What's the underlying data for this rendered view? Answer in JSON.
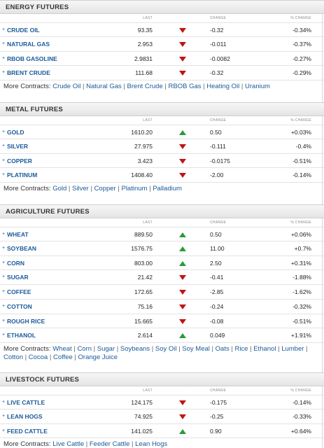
{
  "columns": {
    "last": "LAST",
    "change": "CHANGE",
    "pct": "% CHANGE"
  },
  "more_label": "More Contracts:",
  "sections": [
    {
      "title": "ENERGY FUTURES",
      "rows": [
        {
          "name": "CRUDE OIL",
          "last": "93.35",
          "dir": "down",
          "change": "-0.32",
          "pct": "-0.34%"
        },
        {
          "name": "NATURAL GAS",
          "last": "2.953",
          "dir": "down",
          "change": "-0.011",
          "pct": "-0.37%"
        },
        {
          "name": "RBOB GASOLINE",
          "last": "2.9831",
          "dir": "down",
          "change": "-0.0082",
          "pct": "-0.27%"
        },
        {
          "name": "BRENT CRUDE",
          "last": "111.68",
          "dir": "down",
          "change": "-0.32",
          "pct": "-0.29%"
        }
      ],
      "more": [
        "Crude Oil",
        "Natural Gas",
        "Brent Crude",
        "RBOB Gas",
        "Heating Oil",
        "Uranium"
      ]
    },
    {
      "title": "METAL FUTURES",
      "rows": [
        {
          "name": "GOLD",
          "last": "1610.20",
          "dir": "up",
          "change": "0.50",
          "pct": "+0.03%"
        },
        {
          "name": "SILVER",
          "last": "27.975",
          "dir": "down",
          "change": "-0.111",
          "pct": "-0.4%"
        },
        {
          "name": "COPPER",
          "last": "3.423",
          "dir": "down",
          "change": "-0.0175",
          "pct": "-0.51%"
        },
        {
          "name": "PLATINUM",
          "last": "1408.40",
          "dir": "down",
          "change": "-2.00",
          "pct": "-0.14%"
        }
      ],
      "more": [
        "Gold",
        "Silver",
        "Copper",
        "Platinum",
        "Palladium"
      ]
    },
    {
      "title": "AGRICULTURE FUTURES",
      "rows": [
        {
          "name": "WHEAT",
          "last": "889.50",
          "dir": "up",
          "change": "0.50",
          "pct": "+0.06%"
        },
        {
          "name": "SOYBEAN",
          "last": "1576.75",
          "dir": "up",
          "change": "11.00",
          "pct": "+0.7%"
        },
        {
          "name": "CORN",
          "last": "803.00",
          "dir": "up",
          "change": "2.50",
          "pct": "+0.31%"
        },
        {
          "name": "SUGAR",
          "last": "21.42",
          "dir": "down",
          "change": "-0.41",
          "pct": "-1.88%"
        },
        {
          "name": "COFFEE",
          "last": "172.65",
          "dir": "down",
          "change": "-2.85",
          "pct": "-1.62%"
        },
        {
          "name": "COTTON",
          "last": "75.16",
          "dir": "down",
          "change": "-0.24",
          "pct": "-0.32%"
        },
        {
          "name": "ROUGH RICE",
          "last": "15.665",
          "dir": "down",
          "change": "-0.08",
          "pct": "-0.51%"
        },
        {
          "name": "ETHANOL",
          "last": "2.614",
          "dir": "up",
          "change": "0.049",
          "pct": "+1.91%"
        }
      ],
      "more": [
        "Wheat",
        "Corn",
        "Sugar",
        "Soybeans",
        "Soy Oil",
        "Soy Meal",
        "Oats",
        "Rice",
        "Ethanol",
        "Lumber",
        "Cotton",
        "Cocoa",
        "Coffee",
        "Orange Juice"
      ]
    },
    {
      "title": "LIVESTOCK FUTURES",
      "rows": [
        {
          "name": "LIVE CATTLE",
          "last": "124.175",
          "dir": "down",
          "change": "-0.175",
          "pct": "-0.14%"
        },
        {
          "name": "LEAN HOGS",
          "last": "74.925",
          "dir": "down",
          "change": "-0.25",
          "pct": "-0.33%"
        },
        {
          "name": "FEED CATTLE",
          "last": "141.025",
          "dir": "up",
          "change": "0.90",
          "pct": "+0.64%"
        }
      ],
      "more": [
        "Live Cattle",
        "Feeder Cattle",
        "Lean Hogs"
      ]
    }
  ]
}
